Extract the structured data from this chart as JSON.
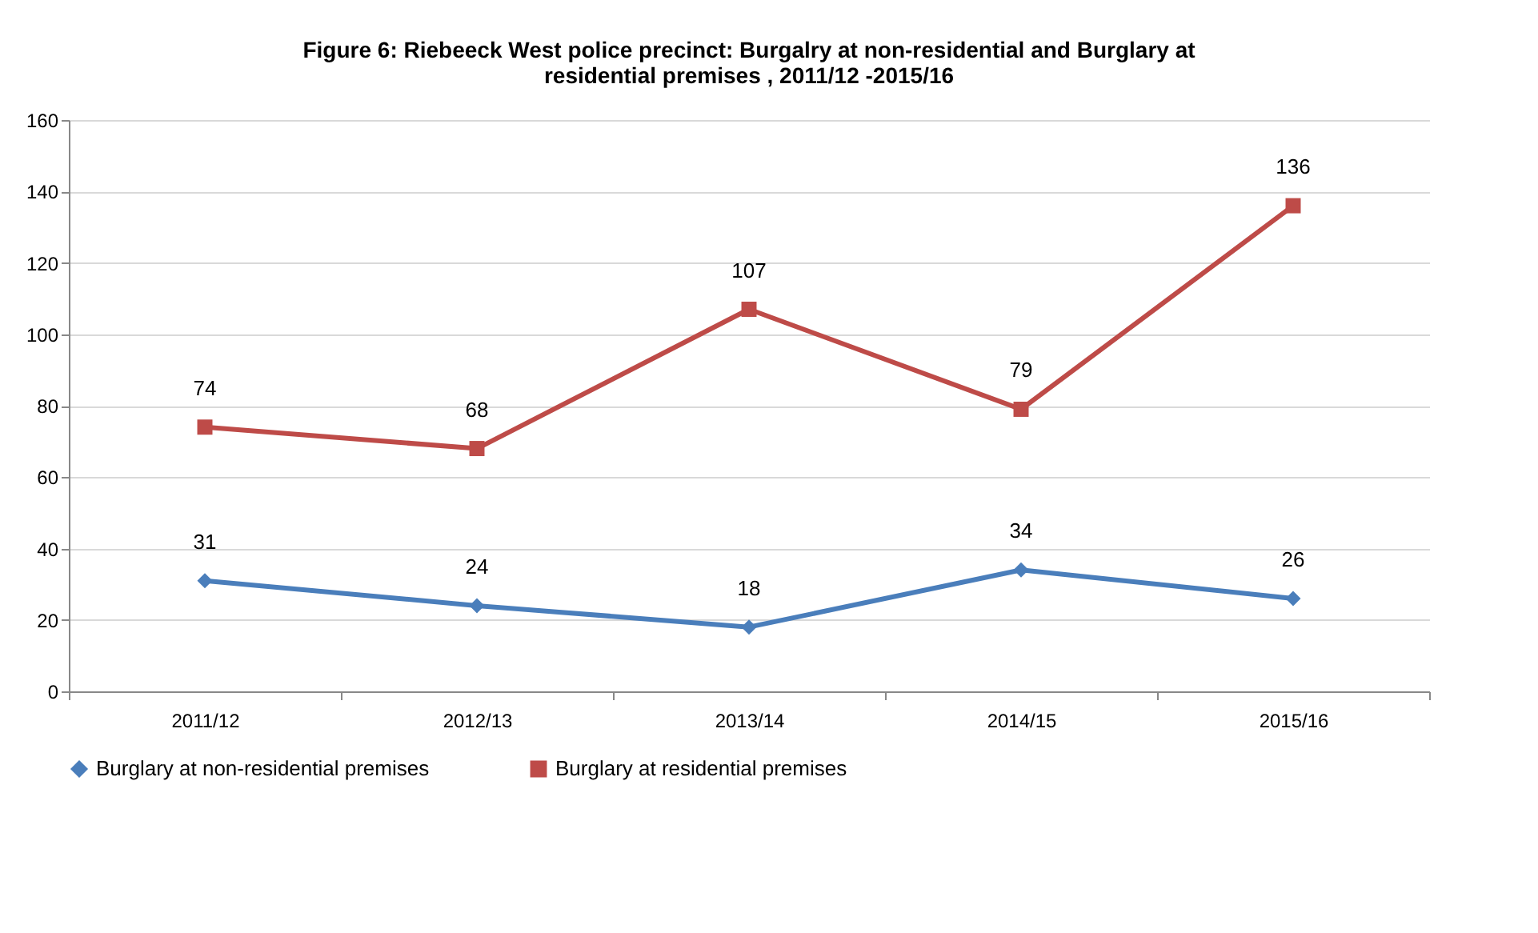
{
  "chart_data": {
    "type": "line",
    "title": "Figure 6: Riebeeck West police precinct: Burgalry at non-residential  and Burglary at residential  premises  , 2011/12 -2015/16",
    "categories": [
      "2011/12",
      "2012/13",
      "2013/14",
      "2014/15",
      "2015/16"
    ],
    "series": [
      {
        "name": "Burglary at non-residential premises",
        "color": "#4a7ebb",
        "marker": "diamond",
        "values": [
          31,
          24,
          18,
          34,
          26
        ]
      },
      {
        "name": "Burglary at residential premises",
        "color": "#be4b48",
        "marker": "square",
        "values": [
          74,
          68,
          107,
          79,
          136
        ]
      }
    ],
    "ylim": [
      0,
      160
    ],
    "yticks": [
      0,
      20,
      40,
      60,
      80,
      100,
      120,
      140,
      160
    ],
    "grid": "y",
    "legend": "bottom",
    "data_labels": true,
    "line_style": "solid"
  }
}
